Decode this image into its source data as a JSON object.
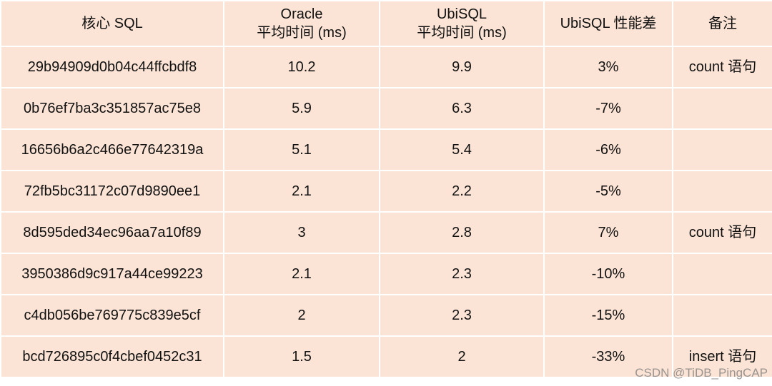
{
  "table": {
    "header": [
      [
        "核心 SQL"
      ],
      [
        "Oracle",
        "平均时间 (ms)"
      ],
      [
        "UbiSQL",
        "平均时间 (ms)"
      ],
      [
        "UbiSQL 性能差"
      ],
      [
        "备注"
      ]
    ],
    "rows": [
      [
        "29b94909d0b04c44ffcbdf8",
        "10.2",
        "9.9",
        "3%",
        "count 语句"
      ],
      [
        "0b76ef7ba3c351857ac75e8",
        "5.9",
        "6.3",
        "-7%",
        null
      ],
      [
        "16656b6a2c466e77642319a",
        "5.1",
        "5.4",
        "-6%",
        null
      ],
      [
        "72fb5bc31172c07d9890ee1",
        "2.1",
        "2.2",
        "-5%",
        null
      ],
      [
        "8d595ded34ec96aa7a10f89",
        "3",
        "2.8",
        "7%",
        "count 语句"
      ],
      [
        "3950386d9c917a44ce99223",
        "2.1",
        "2.3",
        "-10%",
        null
      ],
      [
        "c4db056be769775c839e5cf",
        "2",
        "2.3",
        "-15%",
        null
      ],
      [
        "bcd726895c0f4cbef0452c31",
        "1.5",
        "2",
        "-33%",
        "insert 语句"
      ]
    ]
  },
  "watermark": "CSDN @TiDB_PingCAP"
}
